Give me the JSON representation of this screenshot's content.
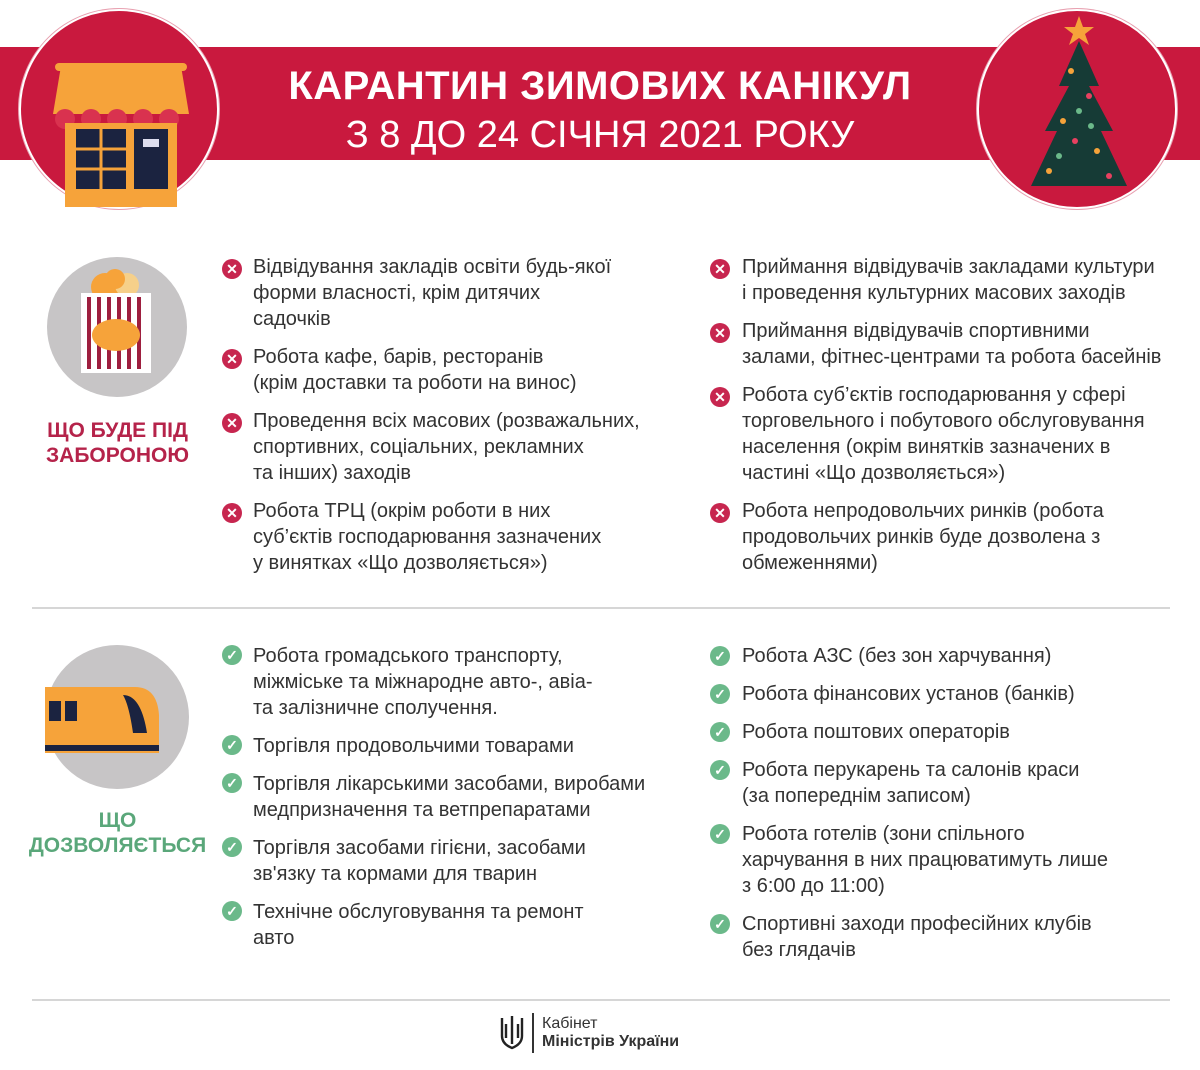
{
  "header": {
    "title": "КАРАНТИН ЗИМОВИХ КАНІКУЛ",
    "subtitle": "З 8 ДО 24 СІЧНЯ 2021 РОКУ",
    "left_icon": "shop-icon",
    "right_icon": "christmas-tree-icon",
    "accent_color": "#c9193e"
  },
  "banned": {
    "label": "ЩО БУДЕ ПІД\nЗАБОРОНОЮ",
    "icon": "popcorn-icon",
    "color": "#b5234a",
    "left": [
      "Відвідування закладів освіти будь-якої\nформи власності, крім дитячих\nсадочків",
      "Робота кафе, барів, ресторанів\n(крім доставки та роботи на винос)",
      "Проведення всіх масових (розважальних,\nспортивних, соціальних, рекламних\nта інших) заходів",
      "Робота ТРЦ (окрім роботи в них\nсуб’єктів господарювання зазначених\nу винятках «Що дозволяється»)"
    ],
    "right": [
      "Приймання відвідувачів закладами культури\nі проведення культурних масових заходів",
      "Приймання відвідувачів спортивними\nзалами, фітнес-центрами та робота басейнів",
      "Робота суб’єктів господарювання у сфері\nторговельного і побутового обслуговування\nнаселення (окрім винятків зазначених в\nчастині «Що дозволяється»)",
      "Робота непродовольчих ринків (робота\nпродовольчих ринків буде дозволена з\nобмеженнями)"
    ]
  },
  "allowed": {
    "label": "ЩО\nДОЗВОЛЯЄТЬСЯ",
    "icon": "train-icon",
    "color": "#5aa77a",
    "left": [
      "Робота громадського транспорту,\nміжміське та міжнародне авто-, авіа-\nта залізничне сполучення.",
      "Торгівля продовольчими товарами",
      "Торгівля лікарськими засобами, виробами\nмедпризначення та ветпрепаратами",
      "Торгівля засобами гігієни, засобами\nзв'язку та кормами для тварин",
      "Технічне обслуговування та ремонт\nавто"
    ],
    "right": [
      "Робота АЗС (без зон харчування)",
      "Робота фінансових установ (банків)",
      "Робота поштових операторів",
      "Робота перукарень та салонів краси\n(за попереднім записом)",
      "Робота готелів (зони спільного\nхарчування в них працюватимуть лише\nз 6:00 до 11:00)",
      "Спортивні заходи професійних клубів\nбез глядачів"
    ]
  },
  "footer": {
    "logo_icon": "trident-icon",
    "line1": "Кабінет",
    "line2": "Міністрів України"
  }
}
